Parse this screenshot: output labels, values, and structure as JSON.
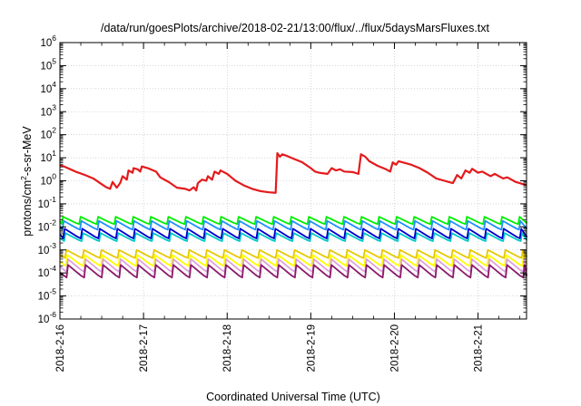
{
  "chart_data": {
    "type": "line",
    "title": "/data/run/goesPlots/archive/2018-02-21/13:00/flux/../flux/5daysMarsFluxes.txt",
    "xlabel": "Coordinated Universal Time (UTC)",
    "ylabel": {
      "pre": "protons/cm",
      "sup": "2",
      "post": "-s-sr-MeV"
    },
    "x_range_days": [
      0,
      5.58
    ],
    "x_ticks": [
      {
        "day": 0,
        "label": "2018-2-16"
      },
      {
        "day": 1,
        "label": "2018-2-17"
      },
      {
        "day": 2,
        "label": "2018-2-18"
      },
      {
        "day": 3,
        "label": "2018-2-19"
      },
      {
        "day": 4,
        "label": "2018-2-20"
      },
      {
        "day": 5,
        "label": "2018-2-21"
      }
    ],
    "y_scale": "log",
    "y_range_exp": [
      -6,
      6
    ],
    "y_ticks": [
      {
        "base": "10",
        "exp": "-6"
      },
      {
        "base": "10",
        "exp": "-5"
      },
      {
        "base": "10",
        "exp": "-4"
      },
      {
        "base": "10",
        "exp": "-3"
      },
      {
        "base": "10",
        "exp": "-2"
      },
      {
        "base": "10",
        "exp": "-1"
      },
      {
        "base": "10",
        "exp": "0"
      },
      {
        "base": "10",
        "exp": "1"
      },
      {
        "base": "10",
        "exp": "2"
      },
      {
        "base": "10",
        "exp": "3"
      },
      {
        "base": "10",
        "exp": "4"
      },
      {
        "base": "10",
        "exp": "5"
      },
      {
        "base": "10",
        "exp": "6"
      }
    ],
    "grid": true,
    "series": [
      {
        "color": "#e41a1c",
        "points": [
          [
            0.0,
            0.68
          ],
          [
            0.05,
            0.62
          ],
          [
            0.1,
            0.54
          ],
          [
            0.15,
            0.46
          ],
          [
            0.2,
            0.38
          ],
          [
            0.3,
            0.25
          ],
          [
            0.4,
            0.1
          ],
          [
            0.5,
            -0.15
          ],
          [
            0.55,
            -0.27
          ],
          [
            0.6,
            -0.35
          ],
          [
            0.63,
            -0.05
          ],
          [
            0.68,
            -0.3
          ],
          [
            0.72,
            -0.1
          ],
          [
            0.75,
            0.2
          ],
          [
            0.8,
            0.05
          ],
          [
            0.82,
            0.45
          ],
          [
            0.87,
            0.35
          ],
          [
            0.88,
            0.55
          ],
          [
            0.93,
            0.5
          ],
          [
            0.96,
            0.4
          ],
          [
            0.98,
            0.62
          ],
          [
            1.05,
            0.55
          ],
          [
            1.15,
            0.4
          ],
          [
            1.2,
            0.15
          ],
          [
            1.3,
            -0.05
          ],
          [
            1.4,
            -0.3
          ],
          [
            1.5,
            -0.35
          ],
          [
            1.55,
            -0.42
          ],
          [
            1.6,
            -0.28
          ],
          [
            1.63,
            -0.42
          ],
          [
            1.65,
            -0.1
          ],
          [
            1.7,
            0.05
          ],
          [
            1.75,
            0.0
          ],
          [
            1.77,
            0.2
          ],
          [
            1.82,
            0.05
          ],
          [
            1.85,
            0.4
          ],
          [
            1.9,
            0.3
          ],
          [
            1.92,
            0.45
          ],
          [
            2.0,
            0.3
          ],
          [
            2.1,
            0.0
          ],
          [
            2.2,
            -0.2
          ],
          [
            2.3,
            -0.35
          ],
          [
            2.4,
            -0.45
          ],
          [
            2.5,
            -0.5
          ],
          [
            2.58,
            -0.52
          ],
          [
            2.6,
            1.2
          ],
          [
            2.63,
            1.05
          ],
          [
            2.66,
            1.15
          ],
          [
            2.7,
            1.1
          ],
          [
            2.8,
            0.95
          ],
          [
            2.9,
            0.8
          ],
          [
            3.0,
            0.55
          ],
          [
            3.05,
            0.4
          ],
          [
            3.1,
            0.35
          ],
          [
            3.2,
            0.3
          ],
          [
            3.25,
            0.55
          ],
          [
            3.3,
            0.45
          ],
          [
            3.35,
            0.5
          ],
          [
            3.4,
            0.4
          ],
          [
            3.5,
            0.38
          ],
          [
            3.57,
            0.3
          ],
          [
            3.6,
            1.15
          ],
          [
            3.65,
            1.05
          ],
          [
            3.7,
            0.85
          ],
          [
            3.8,
            0.65
          ],
          [
            3.9,
            0.5
          ],
          [
            3.95,
            0.4
          ],
          [
            3.98,
            0.8
          ],
          [
            4.02,
            0.7
          ],
          [
            4.05,
            0.85
          ],
          [
            4.1,
            0.8
          ],
          [
            4.2,
            0.7
          ],
          [
            4.3,
            0.55
          ],
          [
            4.4,
            0.35
          ],
          [
            4.5,
            0.1
          ],
          [
            4.6,
            0.0
          ],
          [
            4.65,
            -0.05
          ],
          [
            4.7,
            -0.1
          ],
          [
            4.75,
            0.25
          ],
          [
            4.8,
            0.1
          ],
          [
            4.85,
            0.45
          ],
          [
            4.9,
            0.35
          ],
          [
            4.93,
            0.52
          ],
          [
            5.0,
            0.35
          ],
          [
            5.05,
            0.4
          ],
          [
            5.1,
            0.3
          ],
          [
            5.15,
            0.2
          ],
          [
            5.2,
            0.3
          ],
          [
            5.25,
            0.2
          ],
          [
            5.3,
            0.1
          ],
          [
            5.35,
            0.15
          ],
          [
            5.45,
            -0.05
          ],
          [
            5.5,
            -0.1
          ],
          [
            5.58,
            -0.2
          ]
        ]
      },
      {
        "color": "#00ee00",
        "sawtooth": {
          "base": -1.88,
          "amp": 0.32,
          "period": 0.21,
          "phase": 0.02,
          "slope": 0.0
        }
      },
      {
        "color": "#1e90ff",
        "sawtooth": {
          "base": -2.12,
          "amp": 0.38,
          "period": 0.21,
          "phase": 0.03,
          "slope": 0.0
        }
      },
      {
        "color": "#00c8c8",
        "sawtooth": {
          "base": -2.62,
          "amp": 0.35,
          "period": 0.21,
          "phase": 0.05,
          "slope": 0.0
        }
      },
      {
        "color": "#0000cd",
        "sawtooth": {
          "base": -2.5,
          "amp": 0.42,
          "period": 0.21,
          "phase": 0.04,
          "slope": 0.0
        }
      },
      {
        "color": "#e6c800",
        "sawtooth": {
          "base": -3.35,
          "amp": 0.35,
          "period": 0.21,
          "phase": 0.06,
          "slope": 0.0
        }
      },
      {
        "color": "#ffff00",
        "sawtooth": {
          "base": -3.7,
          "amp": 0.48,
          "period": 0.21,
          "phase": 0.07,
          "slope": 0.0
        }
      },
      {
        "color": "#dda0dd",
        "sawtooth": {
          "base": -3.95,
          "amp": 0.55,
          "period": 0.21,
          "phase": 0.08,
          "slope": 0.0
        }
      },
      {
        "color": "#8b1a6b",
        "sawtooth": {
          "base": -4.2,
          "amp": 0.55,
          "period": 0.21,
          "phase": 0.08,
          "slope": 0.0
        }
      }
    ]
  }
}
